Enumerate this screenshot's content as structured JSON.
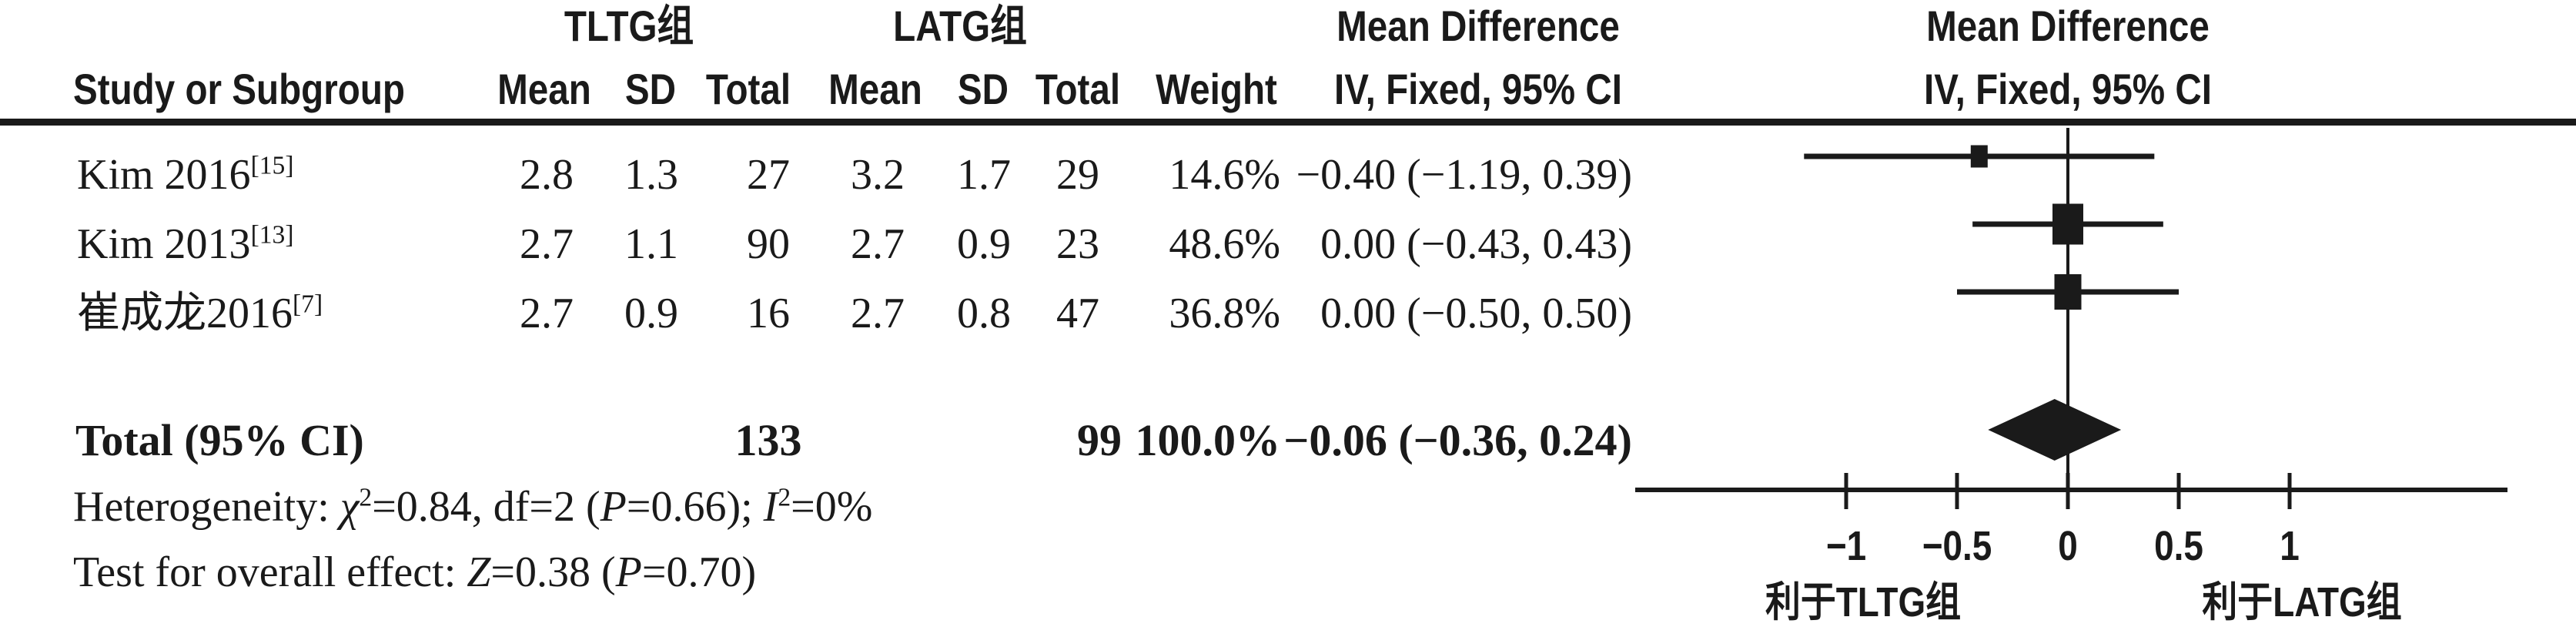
{
  "table": {
    "group1_header": "TLTG组",
    "group2_header": "LATG组",
    "effect_header_line1": "Mean Difference",
    "effect_header_line2": "IV, Fixed, 95% CI",
    "plot_header_line1": "Mean Difference",
    "plot_header_line2": "IV, Fixed, 95% CI",
    "columns": {
      "study": "Study or Subgroup",
      "mean": "Mean",
      "sd": "SD",
      "total": "Total",
      "weight": "Weight",
      "ci": "IV, Fixed, 95% CI"
    },
    "rows": [
      {
        "study": "Kim 2016",
        "ref": "[15]",
        "mean1": "2.8",
        "sd1": "1.3",
        "total1": "27",
        "mean2": "3.2",
        "sd2": "1.7",
        "total2": "29",
        "weight": "14.6%",
        "ci": "−0.40 (−1.19, 0.39)"
      },
      {
        "study": "Kim 2013",
        "ref": "[13]",
        "mean1": "2.7",
        "sd1": "1.1",
        "total1": "90",
        "mean2": "2.7",
        "sd2": "0.9",
        "total2": "23",
        "weight": "48.6%",
        "ci": "0.00 (−0.43, 0.43)"
      },
      {
        "study": "崔成龙2016",
        "ref": "[7]",
        "mean1": "2.7",
        "sd1": "0.9",
        "total1": "16",
        "mean2": "2.7",
        "sd2": "0.8",
        "total2": "47",
        "weight": "36.8%",
        "ci": "0.00 (−0.50, 0.50)"
      }
    ],
    "total_row": {
      "label": "Total (95% CI)",
      "total1": "133",
      "total2": "99",
      "weight": "100.0%",
      "ci": "−0.06 (−0.36, 0.24)"
    },
    "heterogeneity_segments": [
      {
        "t": "Heterogeneity: "
      },
      {
        "t": "χ",
        "i": true
      },
      {
        "t": "2",
        "sup": true
      },
      {
        "t": "=0.84, df=2 ("
      },
      {
        "t": "P",
        "i": true
      },
      {
        "t": "=0.66); "
      },
      {
        "t": "I",
        "i": true
      },
      {
        "t": "2",
        "sup": true
      },
      {
        "t": "=0%"
      }
    ],
    "overall_effect_segments": [
      {
        "t": "Test for overall effect: "
      },
      {
        "t": "Z",
        "i": true
      },
      {
        "t": "=0.38 ("
      },
      {
        "t": "P",
        "i": true
      },
      {
        "t": "=0.70)"
      }
    ]
  },
  "chart_data": {
    "type": "forest",
    "effect_measure": "Mean Difference",
    "model": "IV, Fixed, 95% CI",
    "studies": [
      {
        "label": "Kim 2016",
        "ref": "[15]",
        "md": -0.4,
        "ci_low": -1.19,
        "ci_high": 0.39,
        "weight_pct": 14.6
      },
      {
        "label": "Kim 2013",
        "ref": "[13]",
        "md": 0.0,
        "ci_low": -0.43,
        "ci_high": 0.43,
        "weight_pct": 48.6
      },
      {
        "label": "崔成龙2016",
        "ref": "[7]",
        "md": 0.0,
        "ci_low": -0.5,
        "ci_high": 0.5,
        "weight_pct": 36.8
      }
    ],
    "total": {
      "md": -0.06,
      "ci_low": -0.36,
      "ci_high": 0.24,
      "tltg_total": 133,
      "latg_total": 99,
      "weight_pct": 100.0
    },
    "heterogeneity": {
      "chi2": 0.84,
      "df": 2,
      "P": 0.66,
      "I2_pct": 0
    },
    "overall_effect": {
      "Z": 0.38,
      "P": 0.7
    },
    "x_ticks": [
      -1,
      -0.5,
      0,
      0.5,
      1
    ],
    "x_tick_labels": [
      "−1",
      "−0.5",
      "0",
      "0.5",
      "1"
    ],
    "zero_line": 0,
    "favors_left": "利于TLTG组",
    "favors_right": "利于LATG组",
    "marker_color": "#1a1a1a",
    "line_color": "#1a1a1a"
  }
}
